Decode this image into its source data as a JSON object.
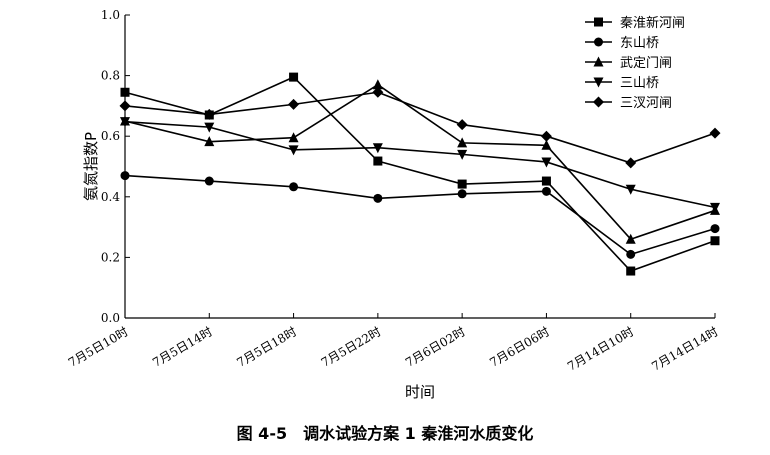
{
  "caption": "图 4-5　调水试验方案 1 秦淮河水质变化",
  "chart_data": {
    "type": "line",
    "xlabel": "时间",
    "ylabel": "氨氮指数P",
    "ylim": [
      0.0,
      1.0
    ],
    "yticks": [
      "0.0",
      "0.2",
      "0.4",
      "0.6",
      "0.8",
      "1.0"
    ],
    "categories": [
      "7月5日10时",
      "7月5日14时",
      "7月5日18时",
      "7月5日22时",
      "7月6日02时",
      "7月6日06时",
      "7月14日10时",
      "7月14日14时"
    ],
    "legend_position": "top-right",
    "grid": false,
    "series": [
      {
        "name": "秦淮新河闸",
        "marker": "square",
        "values": [
          0.745,
          0.67,
          0.795,
          0.518,
          0.442,
          0.452,
          0.155,
          0.255
        ]
      },
      {
        "name": "东山桥",
        "marker": "circle",
        "values": [
          0.47,
          0.452,
          0.433,
          0.395,
          0.41,
          0.418,
          0.21,
          0.295
        ]
      },
      {
        "name": "武定门闸",
        "marker": "triangle-up",
        "values": [
          0.65,
          0.582,
          0.595,
          0.77,
          0.578,
          0.57,
          0.26,
          0.355
        ]
      },
      {
        "name": "三山桥",
        "marker": "triangle-down",
        "values": [
          0.648,
          0.63,
          0.555,
          0.562,
          0.54,
          0.515,
          0.425,
          0.365
        ]
      },
      {
        "name": "三汊河闸",
        "marker": "diamond",
        "values": [
          0.7,
          0.672,
          0.705,
          0.745,
          0.638,
          0.6,
          0.512,
          0.61
        ]
      }
    ]
  }
}
